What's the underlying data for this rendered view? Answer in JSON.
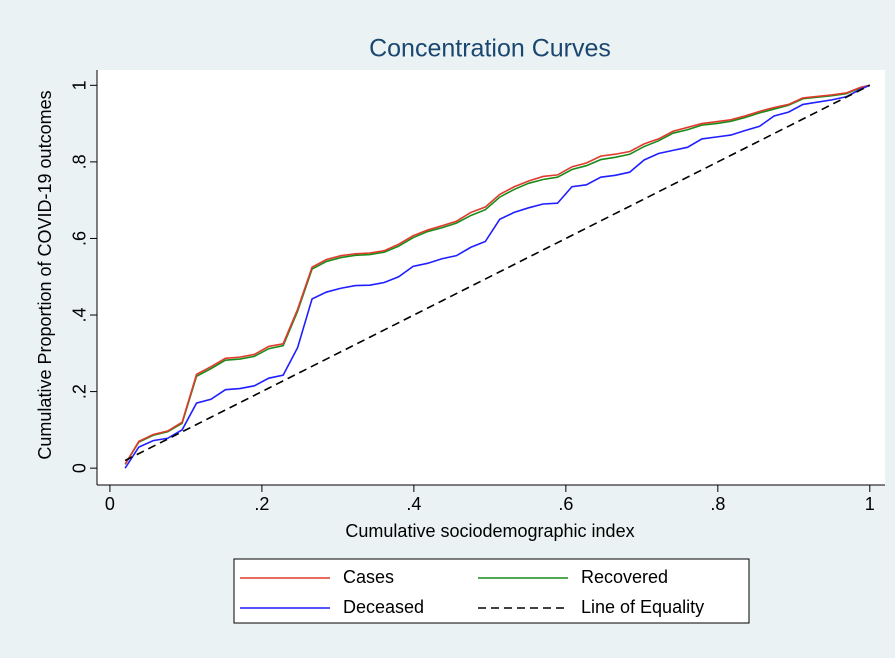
{
  "chart_data": {
    "type": "line",
    "title": "Concentration Curves",
    "x_label": "Cumulative sociodemographic index",
    "y_label": "Cumulative Proportion of COVID-19 outcomes",
    "x": [
      0.02,
      0.038,
      0.057,
      0.076,
      0.095,
      0.114,
      0.133,
      0.152,
      0.171,
      0.19,
      0.209,
      0.228,
      0.247,
      0.266,
      0.285,
      0.304,
      0.323,
      0.342,
      0.361,
      0.38,
      0.399,
      0.418,
      0.437,
      0.456,
      0.475,
      0.494,
      0.513,
      0.532,
      0.551,
      0.57,
      0.589,
      0.608,
      0.627,
      0.646,
      0.665,
      0.684,
      0.703,
      0.722,
      0.741,
      0.76,
      0.779,
      0.798,
      0.817,
      0.836,
      0.855,
      0.874,
      0.893,
      0.912,
      0.95,
      0.969,
      0.988,
      1.0
    ],
    "series": [
      {
        "name": "Recovered",
        "color": "#1a8c1a",
        "dash": false,
        "values": [
          0.01,
          0.068,
          0.086,
          0.095,
          0.117,
          0.24,
          0.26,
          0.282,
          0.285,
          0.292,
          0.312,
          0.32,
          0.41,
          0.52,
          0.54,
          0.55,
          0.556,
          0.558,
          0.564,
          0.58,
          0.602,
          0.618,
          0.628,
          0.64,
          0.66,
          0.675,
          0.708,
          0.728,
          0.744,
          0.754,
          0.76,
          0.78,
          0.79,
          0.806,
          0.812,
          0.82,
          0.84,
          0.855,
          0.875,
          0.884,
          0.896,
          0.9,
          0.906,
          0.916,
          0.928,
          0.938,
          0.948,
          0.965,
          0.973,
          0.978,
          0.994,
          1.0
        ]
      },
      {
        "name": "Cases",
        "color": "#e03a2c",
        "dash": false,
        "values": [
          0.01,
          0.07,
          0.088,
          0.097,
          0.12,
          0.245,
          0.265,
          0.287,
          0.29,
          0.297,
          0.318,
          0.325,
          0.415,
          0.525,
          0.545,
          0.555,
          0.56,
          0.562,
          0.568,
          0.585,
          0.607,
          0.622,
          0.633,
          0.645,
          0.668,
          0.682,
          0.715,
          0.735,
          0.75,
          0.762,
          0.766,
          0.787,
          0.797,
          0.815,
          0.82,
          0.827,
          0.847,
          0.86,
          0.88,
          0.89,
          0.9,
          0.905,
          0.91,
          0.92,
          0.932,
          0.942,
          0.95,
          0.967,
          0.975,
          0.98,
          0.995,
          1.0
        ]
      },
      {
        "name": "Deceased",
        "color": "#1f1fff",
        "dash": false,
        "values": [
          0.0,
          0.055,
          0.072,
          0.078,
          0.1,
          0.17,
          0.18,
          0.205,
          0.208,
          0.215,
          0.235,
          0.243,
          0.315,
          0.442,
          0.46,
          0.47,
          0.477,
          0.478,
          0.485,
          0.5,
          0.527,
          0.535,
          0.547,
          0.555,
          0.577,
          0.592,
          0.65,
          0.668,
          0.68,
          0.69,
          0.692,
          0.735,
          0.74,
          0.76,
          0.765,
          0.773,
          0.805,
          0.822,
          0.83,
          0.838,
          0.86,
          0.865,
          0.87,
          0.882,
          0.893,
          0.92,
          0.93,
          0.95,
          0.962,
          0.97,
          0.99,
          1.0
        ]
      },
      {
        "name": "Line of Equality",
        "color": "#000000",
        "dash": true,
        "values": [
          0.02,
          0.038,
          0.057,
          0.076,
          0.095,
          0.114,
          0.133,
          0.152,
          0.171,
          0.19,
          0.209,
          0.228,
          0.247,
          0.266,
          0.285,
          0.304,
          0.323,
          0.342,
          0.361,
          0.38,
          0.399,
          0.418,
          0.437,
          0.456,
          0.475,
          0.494,
          0.513,
          0.532,
          0.551,
          0.57,
          0.589,
          0.608,
          0.627,
          0.646,
          0.665,
          0.684,
          0.703,
          0.722,
          0.741,
          0.76,
          0.779,
          0.798,
          0.817,
          0.836,
          0.855,
          0.874,
          0.893,
          0.912,
          0.95,
          0.969,
          0.988,
          1.0
        ]
      }
    ],
    "xlim": [
      -0.017,
      1.02
    ],
    "ylim": [
      -0.044,
      1.04
    ],
    "xticks": [
      0,
      {
        "value": 0.2,
        "label": ".2"
      },
      {
        "value": 0.4,
        "label": ".4"
      },
      {
        "value": 0.6,
        "label": ".6"
      },
      {
        "value": 0.8,
        "label": ".8"
      },
      1
    ],
    "yticks": [
      0,
      {
        "value": 0.2,
        "label": ".2"
      },
      {
        "value": 0.4,
        "label": ".4"
      },
      {
        "value": 0.6,
        "label": ".6"
      },
      {
        "value": 0.8,
        "label": ".8"
      },
      1
    ],
    "grid": false,
    "legend": "bottom"
  }
}
